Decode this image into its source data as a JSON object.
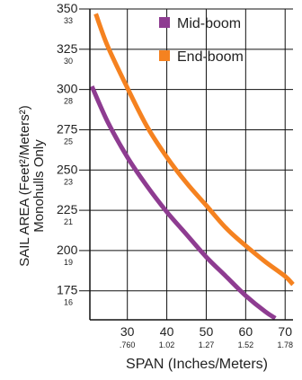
{
  "chart_data": {
    "type": "line",
    "xlabel": "SPAN (Inches/Meters)",
    "ylabel_line1": "SAIL AREA (Feet²/Meters²)",
    "ylabel_line2": "Monohulls Only",
    "xlim": [
      20.5,
      72
    ],
    "ylim": [
      157,
      350
    ],
    "x_ticks": [
      {
        "value": 30,
        "label": "30",
        "sublabel": ".760"
      },
      {
        "value": 40,
        "label": "40",
        "sublabel": "1.02"
      },
      {
        "value": 50,
        "label": "50",
        "sublabel": "1.27"
      },
      {
        "value": 60,
        "label": "60",
        "sublabel": "1.52"
      },
      {
        "value": 70,
        "label": "70",
        "sublabel": "1.78"
      }
    ],
    "y_ticks": [
      {
        "value": 350,
        "label": "350",
        "sublabel": "33"
      },
      {
        "value": 325,
        "label": "325",
        "sublabel": "30"
      },
      {
        "value": 300,
        "label": "300",
        "sublabel": "28"
      },
      {
        "value": 275,
        "label": "275",
        "sublabel": "25"
      },
      {
        "value": 250,
        "label": "250",
        "sublabel": "23"
      },
      {
        "value": 225,
        "label": "225",
        "sublabel": "21"
      },
      {
        "value": 200,
        "label": "200",
        "sublabel": "19"
      },
      {
        "value": 175,
        "label": "175",
        "sublabel": "16"
      }
    ],
    "grid": true,
    "legend_position": "top-right",
    "series": [
      {
        "name": "Mid-boom",
        "color": "#8e3c91",
        "x": [
          21,
          25,
          30,
          35,
          40,
          45,
          50,
          55,
          60,
          65,
          67.5
        ],
        "y": [
          302,
          280,
          258,
          240,
          224,
          210,
          196,
          184,
          172,
          162,
          158
        ]
      },
      {
        "name": "End-boom",
        "color": "#f58220",
        "x": [
          22,
          25,
          30,
          35,
          40,
          45,
          50,
          55,
          60,
          65,
          70,
          72
        ],
        "y": [
          347,
          327,
          301,
          277,
          258,
          242,
          228,
          214,
          203,
          193,
          184,
          179
        ]
      }
    ]
  }
}
